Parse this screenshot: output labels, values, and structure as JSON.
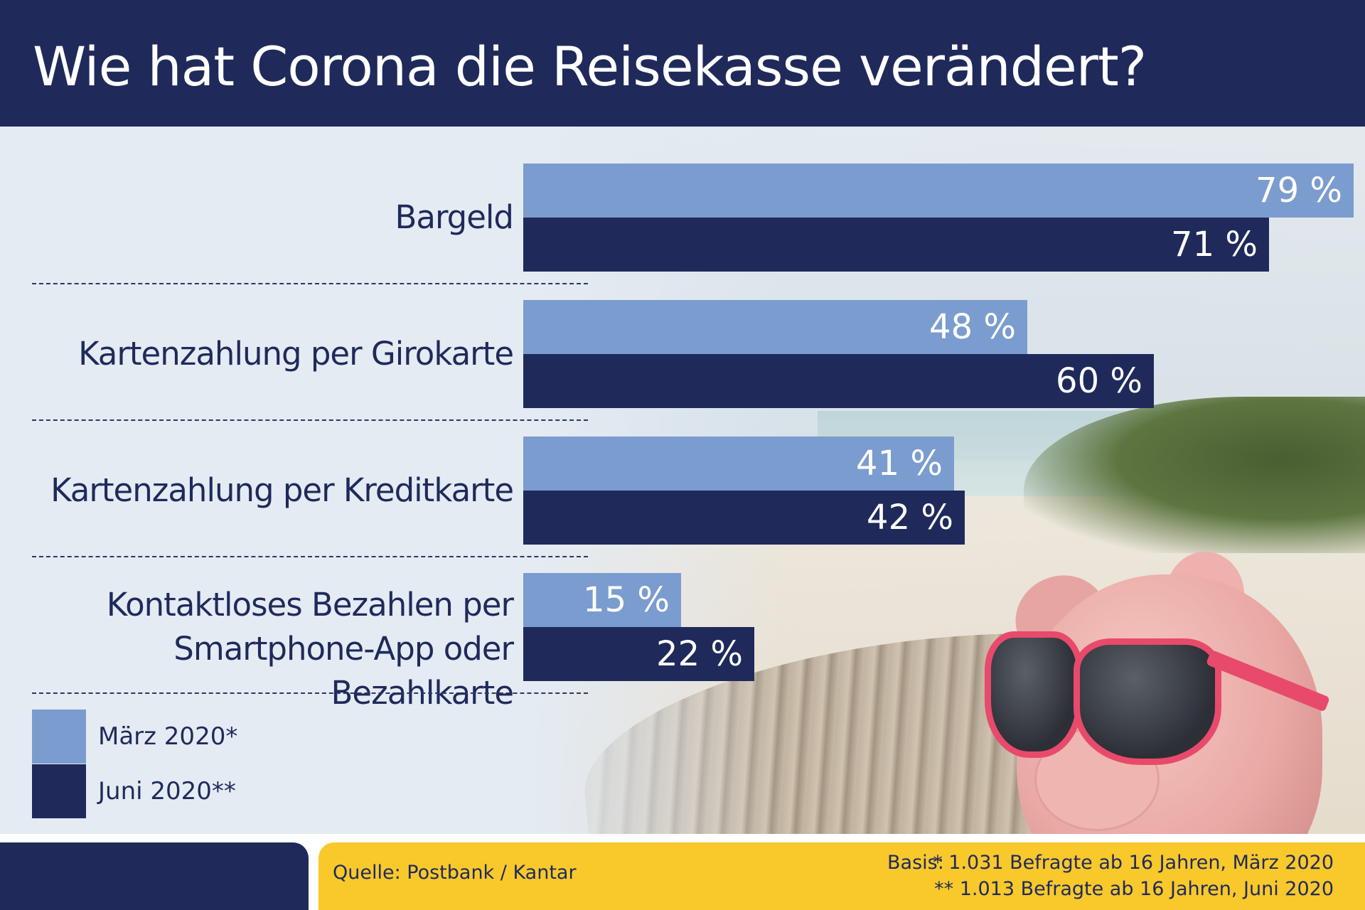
{
  "title": "Wie hat Corona die Reisekasse verändert?",
  "chart_data": {
    "type": "bar",
    "orientation": "horizontal",
    "title": "Wie hat Corona die Reisekasse verändert?",
    "categories": [
      "Bargeld",
      "Kartenzahlung per Girokarte",
      "Kartenzahlung per Kreditkarte",
      "Kontaktloses Bezahlen per Smartphone-App oder Bezahlkarte"
    ],
    "series": [
      {
        "name": "März 2020*",
        "values": [
          79,
          48,
          41,
          15
        ],
        "value_labels": [
          "79 %",
          "48 %",
          "41 %",
          "15 %"
        ]
      },
      {
        "name": "Juni 2020**",
        "values": [
          71,
          60,
          42,
          22
        ],
        "value_labels": [
          "71 %",
          "60 %",
          "42 %",
          "22 %"
        ]
      }
    ],
    "xlim": [
      0,
      100
    ],
    "unit": "%",
    "legend_position": "bottom-left",
    "grid": false
  },
  "category_lines": [
    [
      "Bargeld"
    ],
    [
      "Kartenzahlung per Girokarte"
    ],
    [
      "Kartenzahlung per Kreditkarte"
    ],
    [
      "Kontaktloses Bezahlen per",
      "Smartphone-App oder Bezahlkarte"
    ]
  ],
  "legend": [
    {
      "label": "März 2020*",
      "color": "#7b9cce"
    },
    {
      "label": "Juni 2020**",
      "color": "#1f2a5b"
    }
  ],
  "colors": {
    "navy": "#1f2a5b",
    "light_blue": "#7b9cce",
    "yellow": "#f9c82b",
    "background": "#e4ebf3"
  },
  "footer": {
    "source": "Quelle: Postbank / Kantar",
    "basis_label": "Basis:",
    "basis_lines": [
      "* 1.031 Befragte ab 16 Jahren, März 2020",
      "** 1.013 Befragte ab 16 Jahren, Juni 2020"
    ]
  }
}
